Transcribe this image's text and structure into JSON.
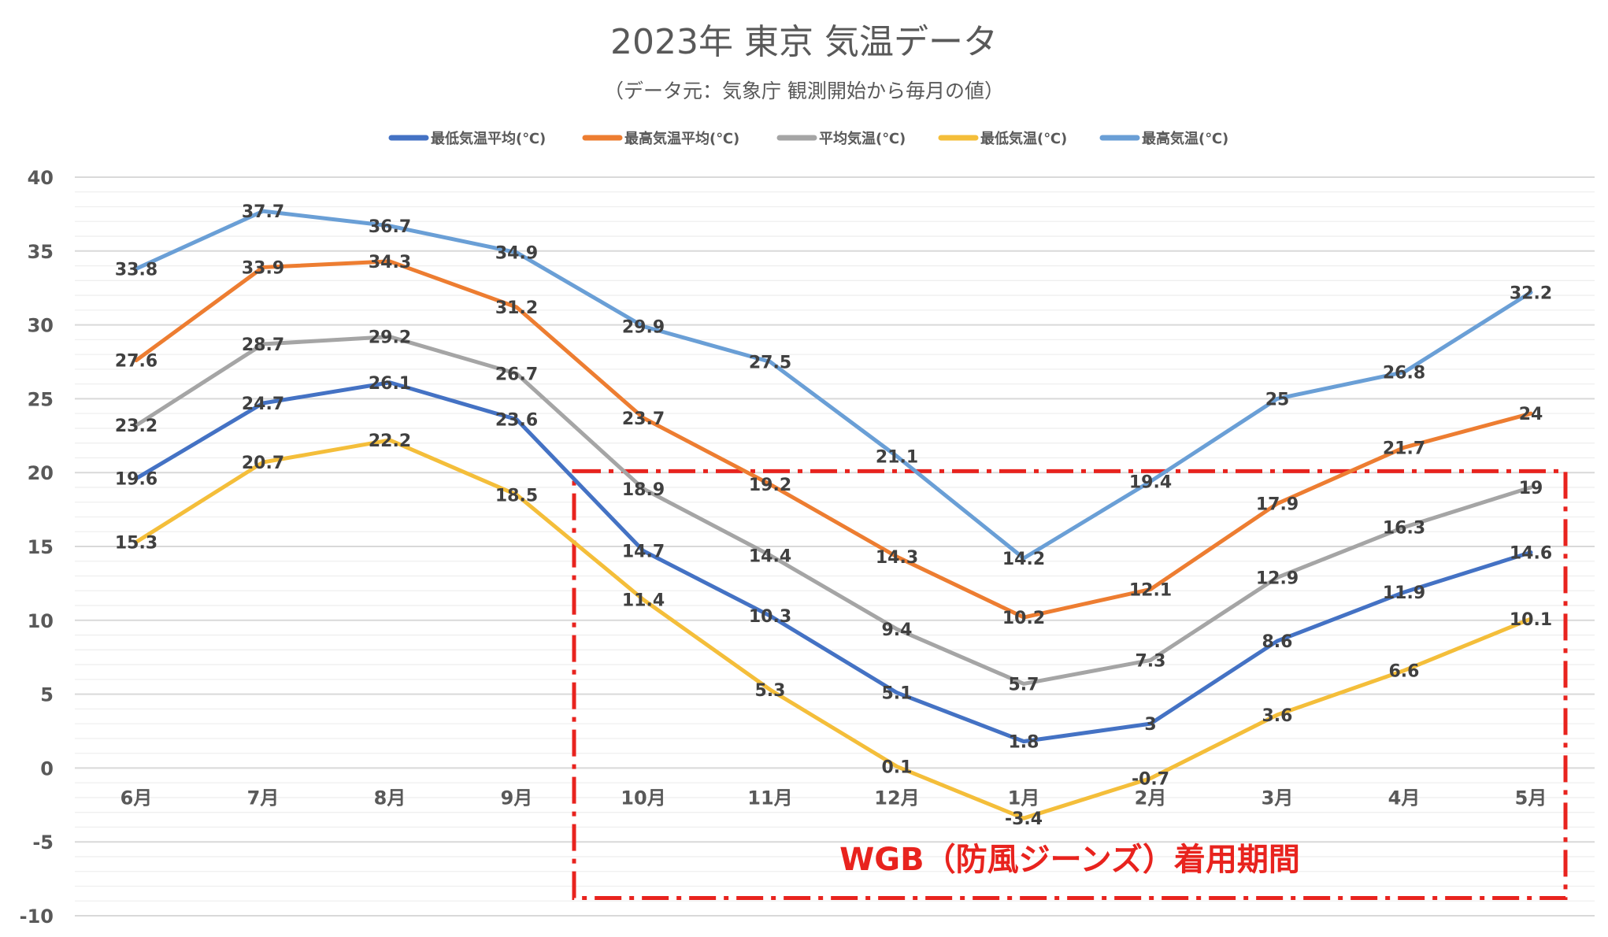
{
  "chart_data": {
    "type": "line",
    "title": "2023年 東京 気温データ",
    "subtitle": "（データ元：気象庁 観測開始から毎月の値）",
    "categories": [
      "6月",
      "7月",
      "8月",
      "9月",
      "10月",
      "11月",
      "12月",
      "1月",
      "2月",
      "3月",
      "4月",
      "5月"
    ],
    "ylim": [
      -10,
      40
    ],
    "yticks": [
      -10,
      -5,
      0,
      5,
      10,
      15,
      20,
      25,
      30,
      35,
      40
    ],
    "grid": true,
    "legend": "top",
    "series": [
      {
        "name": "最低気温平均(℃)",
        "color": "#4472C4",
        "values": [
          19.6,
          24.7,
          26.1,
          23.6,
          14.7,
          10.3,
          5.1,
          1.8,
          3,
          8.6,
          11.9,
          14.6
        ]
      },
      {
        "name": "最高気温平均(℃)",
        "color": "#ED7D31",
        "values": [
          27.6,
          33.9,
          34.3,
          31.2,
          23.7,
          19.2,
          14.3,
          10.2,
          12.1,
          17.9,
          21.7,
          24
        ]
      },
      {
        "name": "平均気温(℃)",
        "color": "#A5A5A5",
        "values": [
          23.2,
          28.7,
          29.2,
          26.7,
          18.9,
          14.4,
          9.4,
          5.7,
          7.3,
          12.9,
          16.3,
          19
        ]
      },
      {
        "name": "最低気温(℃)",
        "color": "#F4BE3A",
        "values": [
          15.3,
          20.7,
          22.2,
          18.5,
          11.4,
          5.3,
          0.1,
          -3.4,
          -0.7,
          3.6,
          6.6,
          10.1
        ]
      },
      {
        "name": "最高気温(℃)",
        "color": "#6A9FD6",
        "values": [
          33.8,
          37.7,
          36.7,
          34.9,
          29.9,
          27.5,
          21.1,
          14.2,
          19.4,
          25,
          26.8,
          32.2
        ]
      }
    ],
    "annotation": {
      "text": "WGB（防風ジーンズ）着用期間",
      "color": "#E8231E",
      "from_category": "10月",
      "to_category": "5月",
      "y_range": [
        -8.8,
        20.1
      ]
    }
  }
}
